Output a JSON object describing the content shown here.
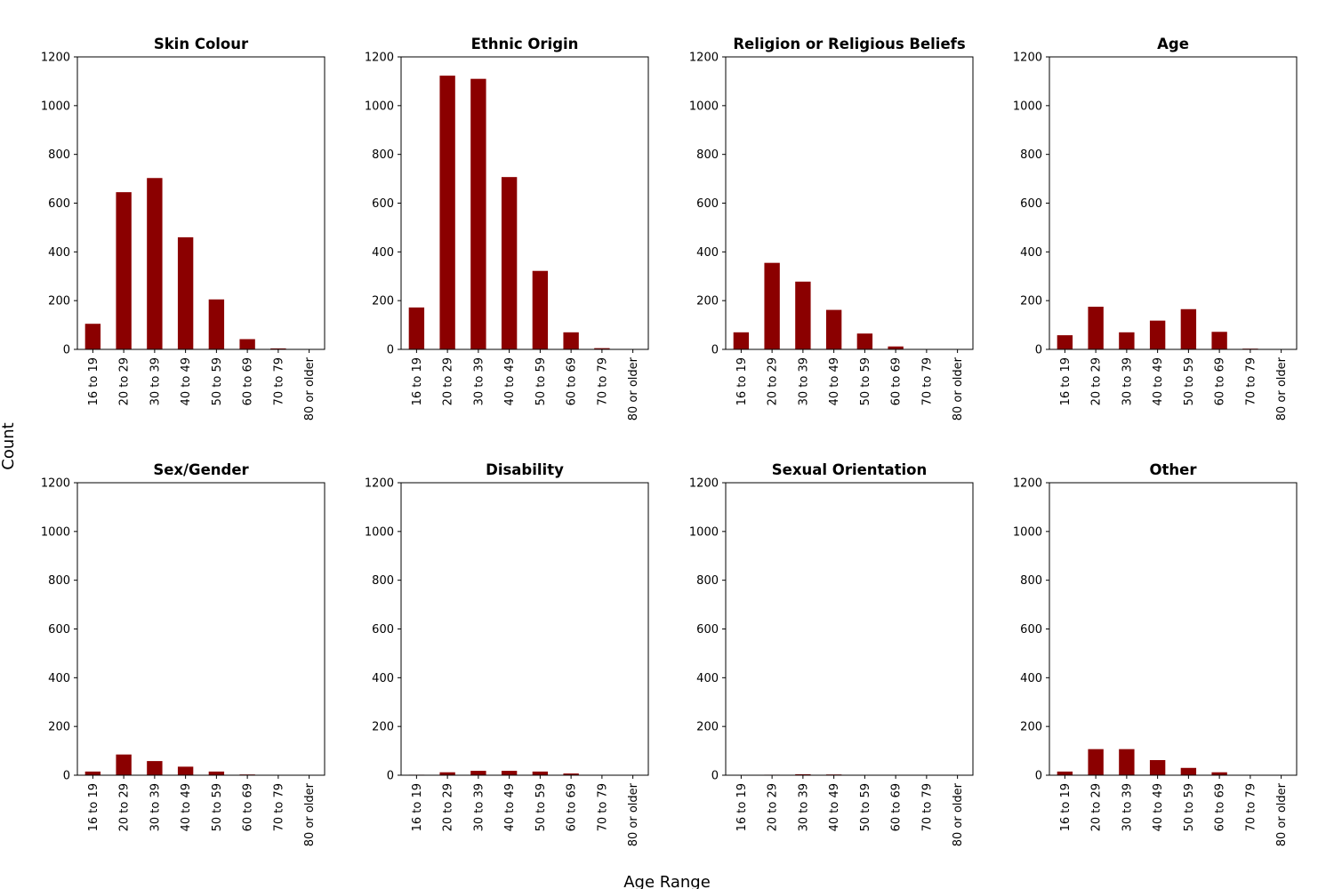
{
  "chart_data": {
    "type": "bar",
    "xlabel": "Age Range",
    "ylabel": "Count",
    "ylim": [
      0,
      1200
    ],
    "yticks": [
      0,
      200,
      400,
      600,
      800,
      1000,
      1200
    ],
    "bar_color": "#8b0000",
    "grid": false,
    "categories": [
      "16 to 19",
      "20 to 29",
      "30 to 39",
      "40 to 49",
      "50 to 59",
      "60 to 69",
      "70 to 79",
      "80 or older"
    ],
    "panels": [
      {
        "title": "Skin Colour",
        "values": [
          105,
          645,
          703,
          460,
          205,
          42,
          4,
          0
        ]
      },
      {
        "title": "Ethnic Origin",
        "values": [
          172,
          1123,
          1110,
          707,
          322,
          70,
          5,
          0
        ]
      },
      {
        "title": "Religion or Religious Beliefs",
        "values": [
          70,
          355,
          278,
          162,
          65,
          12,
          1,
          0
        ]
      },
      {
        "title": "Age",
        "values": [
          58,
          175,
          70,
          118,
          165,
          72,
          3,
          0
        ]
      },
      {
        "title": "Sex/Gender",
        "values": [
          15,
          85,
          58,
          35,
          15,
          3,
          0,
          0
        ]
      },
      {
        "title": "Disability",
        "values": [
          2,
          12,
          18,
          18,
          15,
          7,
          1,
          0
        ]
      },
      {
        "title": "Sexual Orientation",
        "values": [
          1,
          2,
          4,
          3,
          1,
          0,
          0,
          0
        ]
      },
      {
        "title": "Other",
        "values": [
          15,
          107,
          107,
          62,
          30,
          12,
          1,
          0
        ]
      }
    ]
  }
}
